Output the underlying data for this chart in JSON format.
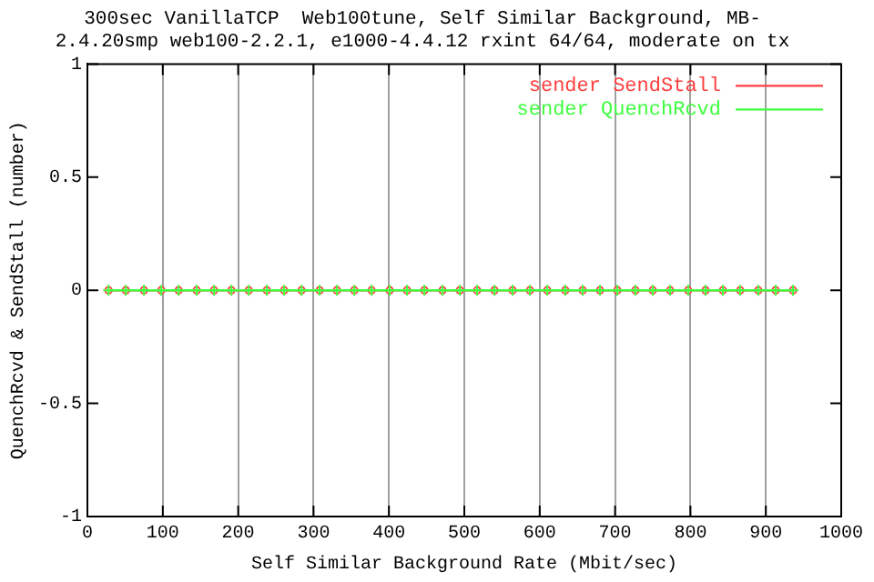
{
  "chart_data": {
    "type": "line",
    "title": "300sec VanillaTCP  Web100tune, Self Similar Background, MB-\n2.4.20smp web100-2.2.1, e1000-4.4.12 rxint 64/64, moderate on tx",
    "xlabel": "Self Similar Background Rate (Mbit/sec)",
    "ylabel": "QuenchRcvd & SendStall (number)",
    "x": [
      28,
      51,
      75,
      98,
      121,
      145,
      168,
      191,
      214,
      238,
      261,
      284,
      308,
      331,
      354,
      377,
      401,
      424,
      447,
      471,
      494,
      517,
      540,
      564,
      587,
      610,
      634,
      657,
      680,
      703,
      727,
      750,
      773,
      797,
      820,
      843,
      866,
      890,
      913,
      936
    ],
    "series": [
      {
        "name": "sender SendStall",
        "color": "#ff4040",
        "marker": "circle",
        "values": [
          0,
          0,
          0,
          0,
          0,
          0,
          0,
          0,
          0,
          0,
          0,
          0,
          0,
          0,
          0,
          0,
          0,
          0,
          0,
          0,
          0,
          0,
          0,
          0,
          0,
          0,
          0,
          0,
          0,
          0,
          0,
          0,
          0,
          0,
          0,
          0,
          0,
          0,
          0,
          0
        ]
      },
      {
        "name": "sender QuenchRcvd",
        "color": "#40ff40",
        "marker": "cross",
        "values": [
          0,
          0,
          0,
          0,
          0,
          0,
          0,
          0,
          0,
          0,
          0,
          0,
          0,
          0,
          0,
          0,
          0,
          0,
          0,
          0,
          0,
          0,
          0,
          0,
          0,
          0,
          0,
          0,
          0,
          0,
          0,
          0,
          0,
          0,
          0,
          0,
          0,
          0,
          0,
          0
        ]
      }
    ],
    "xlim": [
      0,
      1000
    ],
    "xticks": [
      0,
      100,
      200,
      300,
      400,
      500,
      600,
      700,
      800,
      900,
      1000
    ],
    "ylim": [
      -1,
      1
    ],
    "yticks": [
      -1,
      -0.5,
      0,
      0.5,
      1
    ],
    "grid": "x",
    "legend": "top right",
    "line_style": "solid"
  }
}
